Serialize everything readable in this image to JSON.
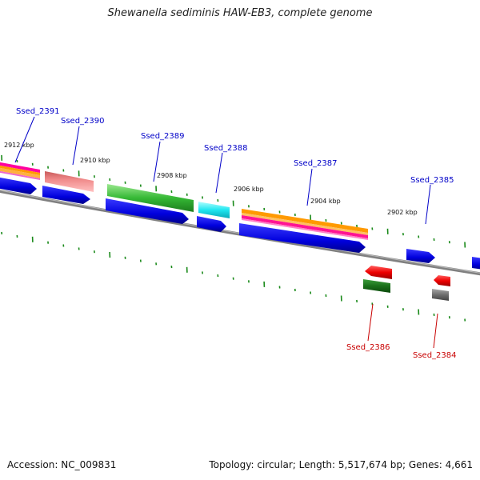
{
  "title": "Shewanella sediminis HAW-EB3, complete genome",
  "accession": "Accession: NC_009831",
  "summary": "Topology: circular; Length: 5,517,674 bp; Genes: 4,661",
  "scale_labels": [
    "2912 kbp",
    "2910 kbp",
    "2908 kbp",
    "2906 kbp",
    "2904 kbp",
    "2902 kbp"
  ],
  "gene_labels": {
    "top": [
      "Ssed_2391",
      "Ssed_2390",
      "Ssed_2389",
      "Ssed_2388",
      "Ssed_2387",
      "Ssed_2385"
    ],
    "bottom": [
      "Ssed_2386",
      "Ssed_2384"
    ]
  },
  "colors": {
    "backbone": "#808080",
    "tick": "#1a8a1a",
    "label_forward": "#0000c8",
    "label_reverse": "#c80000"
  }
}
